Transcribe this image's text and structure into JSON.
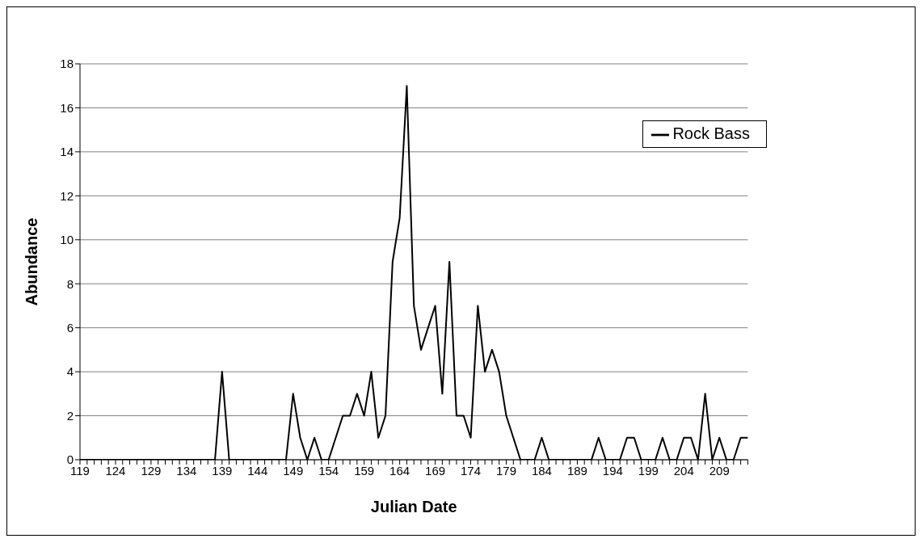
{
  "chart_data": {
    "type": "line",
    "xlabel": "Julian Date",
    "ylabel": "Abundance",
    "categories": [
      "119",
      null,
      null,
      null,
      null,
      "124",
      null,
      null,
      null,
      null,
      "129",
      null,
      null,
      null,
      null,
      "134",
      null,
      null,
      null,
      null,
      "139",
      null,
      null,
      null,
      null,
      "144",
      null,
      null,
      null,
      null,
      "149",
      null,
      null,
      null,
      null,
      "154",
      null,
      null,
      null,
      null,
      "159",
      null,
      null,
      null,
      null,
      "164",
      null,
      null,
      null,
      null,
      "169",
      null,
      null,
      null,
      null,
      "174",
      null,
      null,
      null,
      null,
      "179",
      null,
      null,
      null,
      null,
      "184",
      null,
      null,
      null,
      null,
      "189",
      null,
      null,
      null,
      null,
      "194",
      null,
      null,
      null,
      null,
      "199",
      null,
      null,
      null,
      null,
      "204",
      null,
      null,
      null,
      null,
      "209",
      null,
      null,
      null,
      null
    ],
    "series": [
      {
        "name": "Rock Bass",
        "color": "#000000",
        "values": [
          0,
          0,
          0,
          0,
          0,
          0,
          0,
          0,
          0,
          0,
          0,
          0,
          0,
          0,
          0,
          0,
          0,
          0,
          0,
          0,
          4,
          0,
          0,
          0,
          0,
          0,
          0,
          0,
          0,
          0,
          3,
          1,
          0,
          1,
          0,
          0,
          1,
          2,
          2,
          3,
          2,
          4,
          1,
          2,
          9,
          11,
          17,
          7,
          5,
          6,
          7,
          3,
          9,
          2,
          2,
          1,
          7,
          4,
          5,
          4,
          2,
          1,
          0,
          0,
          0,
          1,
          0,
          0,
          0,
          0,
          0,
          0,
          0,
          1,
          0,
          0,
          0,
          1,
          1,
          0,
          0,
          0,
          1,
          0,
          0,
          1,
          1,
          0,
          3,
          0,
          1,
          0,
          0,
          1,
          1
        ]
      }
    ],
    "ylim": [
      0,
      18
    ],
    "yticks": [
      0,
      2,
      4,
      6,
      8,
      10,
      12,
      14,
      16,
      18
    ],
    "grid": "y",
    "legend": "top right",
    "marker": "none",
    "line_style": "solid"
  }
}
